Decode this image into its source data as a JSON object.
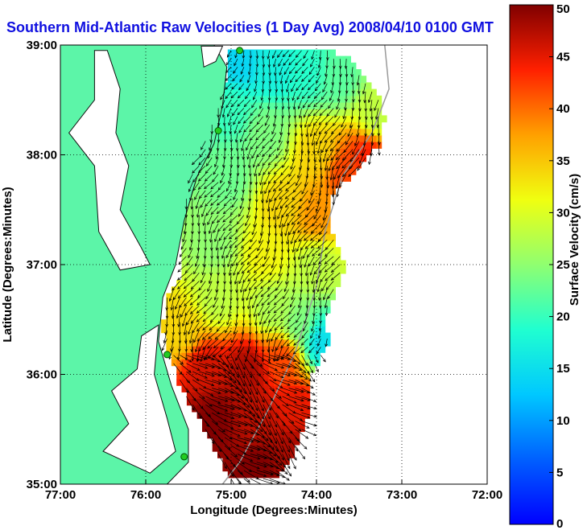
{
  "chart_data": {
    "type": "heatmap",
    "title": "Southern Mid-Atlantic Raw Velocities (1 Day Avg) 2008/04/10 0100 GMT",
    "xlabel": "Longitude (Degrees:Minutes)",
    "ylabel": "Latitude (Degrees:Minutes)",
    "colorbar_label": "Surface Velocity (cm/s)",
    "xlim": [
      -77,
      -72
    ],
    "ylim": [
      35,
      39
    ],
    "x_ticks": [
      {
        "value": -77,
        "label": "77:00"
      },
      {
        "value": -76,
        "label": "76:00"
      },
      {
        "value": -75,
        "label": "75:00"
      },
      {
        "value": -74,
        "label": "74:00"
      },
      {
        "value": -73,
        "label": "73:00"
      },
      {
        "value": -72,
        "label": "72:00"
      }
    ],
    "y_ticks": [
      {
        "value": 35,
        "label": "35:00"
      },
      {
        "value": 36,
        "label": "36:00"
      },
      {
        "value": 37,
        "label": "37:00"
      },
      {
        "value": 38,
        "label": "38:00"
      },
      {
        "value": 39,
        "label": "39:00"
      }
    ],
    "colorbar_range": [
      0,
      50
    ],
    "colorbar_ticks": [
      "0",
      "5",
      "10",
      "15",
      "20",
      "25",
      "30",
      "35",
      "40",
      "45",
      "50"
    ],
    "grid": true,
    "colormap": "jet",
    "land_color": "#5cf5a8",
    "arrow_color": "#000000",
    "station_color": "#22cc22",
    "stations": [
      {
        "lon": -74.9,
        "lat": 38.95
      },
      {
        "lon": -75.15,
        "lat": 38.22
      },
      {
        "lon": -75.75,
        "lat": 36.18
      },
      {
        "lon": -75.55,
        "lat": 35.25
      }
    ],
    "speed_regions": [
      {
        "lon": -74.9,
        "lat": 38.85,
        "speed": 14
      },
      {
        "lon": -74.5,
        "lat": 38.78,
        "speed": 17
      },
      {
        "lon": -74.1,
        "lat": 38.75,
        "speed": 19
      },
      {
        "lon": -73.75,
        "lat": 38.7,
        "speed": 22
      },
      {
        "lon": -73.3,
        "lat": 38.35,
        "speed": 28
      },
      {
        "lon": -73.4,
        "lat": 38.0,
        "speed": 44
      },
      {
        "lon": -73.65,
        "lat": 37.85,
        "speed": 42
      },
      {
        "lon": -74.0,
        "lat": 38.05,
        "speed": 34
      },
      {
        "lon": -74.6,
        "lat": 38.2,
        "speed": 24
      },
      {
        "lon": -75.0,
        "lat": 38.4,
        "speed": 20
      },
      {
        "lon": -75.05,
        "lat": 37.8,
        "speed": 23
      },
      {
        "lon": -74.4,
        "lat": 37.55,
        "speed": 34
      },
      {
        "lon": -74.0,
        "lat": 37.45,
        "speed": 38
      },
      {
        "lon": -74.0,
        "lat": 37.0,
        "speed": 28
      },
      {
        "lon": -74.6,
        "lat": 37.1,
        "speed": 32
      },
      {
        "lon": -75.2,
        "lat": 37.2,
        "speed": 25
      },
      {
        "lon": -75.15,
        "lat": 36.7,
        "speed": 28
      },
      {
        "lon": -74.5,
        "lat": 36.6,
        "speed": 27
      },
      {
        "lon": -74.2,
        "lat": 36.45,
        "speed": 24
      },
      {
        "lon": -75.6,
        "lat": 36.4,
        "speed": 34
      },
      {
        "lon": -75.3,
        "lat": 36.05,
        "speed": 46
      },
      {
        "lon": -74.8,
        "lat": 36.05,
        "speed": 48
      },
      {
        "lon": -74.4,
        "lat": 36.15,
        "speed": 42
      },
      {
        "lon": -75.2,
        "lat": 35.6,
        "speed": 50
      },
      {
        "lon": -74.7,
        "lat": 35.6,
        "speed": 47
      },
      {
        "lon": -74.25,
        "lat": 35.7,
        "speed": 45
      },
      {
        "lon": -74.7,
        "lat": 35.15,
        "speed": 50
      },
      {
        "lon": -74.3,
        "lat": 35.3,
        "speed": 48
      },
      {
        "lon": -73.95,
        "lat": 36.3,
        "speed": 15
      }
    ],
    "flow_field": {
      "description_free": true,
      "mean_direction_deg_north": {
        "north": 200,
        "center": 205,
        "south": 130
      }
    }
  }
}
